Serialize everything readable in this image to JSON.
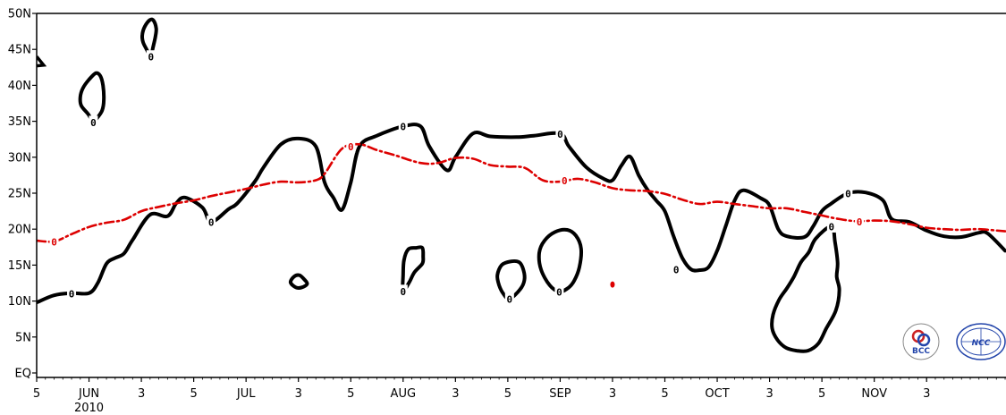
{
  "chart_data": {
    "type": "line",
    "title": "",
    "xlabel": "",
    "ylabel": "",
    "y_tick_labels": [
      "EQ",
      "5N",
      "10N",
      "15N",
      "20N",
      "25N",
      "30N",
      "35N",
      "40N",
      "45N",
      "50N"
    ],
    "ylim": [
      0,
      50
    ],
    "x_tick_labels": [
      {
        "label": "5",
        "day": 5
      },
      {
        "label": "JUN",
        "day": 11
      },
      {
        "label": "3",
        "day": 17
      },
      {
        "label": "5",
        "day": 23
      },
      {
        "label": "JUL",
        "day": 29
      },
      {
        "label": "3",
        "day": 35
      },
      {
        "label": "5",
        "day": 41
      },
      {
        "label": "AUG",
        "day": 47
      },
      {
        "label": "3",
        "day": 53
      },
      {
        "label": "5",
        "day": 59
      },
      {
        "label": "SEP",
        "day": 65
      },
      {
        "label": "3",
        "day": 71
      },
      {
        "label": "5",
        "day": 77
      },
      {
        "label": "OCT",
        "day": 83
      },
      {
        "label": "3",
        "day": 89
      },
      {
        "label": "5",
        "day": 95
      },
      {
        "label": "NOV",
        "day": 101
      },
      {
        "label": "3",
        "day": 107
      }
    ],
    "year_label": "2010",
    "grid": false,
    "series": [
      {
        "color": "#000000",
        "style": "solid",
        "contour_label": "0",
        "points": [
          [
            5,
            9.8
          ],
          [
            7,
            10.8
          ],
          [
            9,
            11.1
          ],
          [
            11,
            11.1
          ],
          [
            12,
            12.5
          ],
          [
            13,
            15.2
          ],
          [
            14,
            16.0
          ],
          [
            15,
            16.6
          ],
          [
            16,
            18.5
          ],
          [
            18,
            22.0
          ],
          [
            20,
            21.8
          ],
          [
            21,
            23.6
          ],
          [
            22,
            24.4
          ],
          [
            24,
            23.0
          ],
          [
            25,
            21.0
          ],
          [
            27,
            22.8
          ],
          [
            28,
            23.6
          ],
          [
            30,
            26.6
          ],
          [
            31,
            28.6
          ],
          [
            33,
            31.8
          ],
          [
            35,
            32.6
          ],
          [
            37,
            31.5
          ],
          [
            38,
            26.5
          ],
          [
            39,
            24.4
          ],
          [
            40,
            22.7
          ],
          [
            41,
            26.5
          ],
          [
            42,
            31.5
          ],
          [
            44,
            33.0
          ],
          [
            47,
            34.3
          ],
          [
            49,
            34.3
          ],
          [
            50,
            31.5
          ],
          [
            52,
            28.2
          ],
          [
            53,
            30.0
          ],
          [
            55,
            33.3
          ],
          [
            57,
            32.9
          ],
          [
            60,
            32.8
          ],
          [
            62,
            33.0
          ],
          [
            65,
            33.3
          ],
          [
            66,
            31.5
          ],
          [
            68,
            28.6
          ],
          [
            70,
            27.0
          ],
          [
            71,
            26.8
          ],
          [
            72,
            28.8
          ],
          [
            73,
            30.1
          ],
          [
            74,
            27.5
          ],
          [
            75,
            25.5
          ],
          [
            76,
            24.0
          ],
          [
            77,
            22.5
          ],
          [
            78,
            19.0
          ],
          [
            79,
            16.0
          ],
          [
            80,
            14.4
          ],
          [
            81,
            14.3
          ],
          [
            82,
            14.7
          ],
          [
            83,
            17.0
          ],
          [
            84,
            20.5
          ],
          [
            85,
            24.0
          ],
          [
            86,
            25.4
          ],
          [
            88,
            24.3
          ],
          [
            89,
            23.3
          ],
          [
            90,
            20.0
          ],
          [
            91,
            19.0
          ],
          [
            93,
            18.9
          ],
          [
            94,
            20.4
          ],
          [
            95,
            22.5
          ],
          [
            96,
            23.5
          ],
          [
            98,
            25.0
          ],
          [
            100,
            25.1
          ],
          [
            102,
            24.0
          ],
          [
            103,
            21.4
          ],
          [
            105,
            21.0
          ],
          [
            107,
            19.8
          ],
          [
            109,
            19.0
          ],
          [
            111,
            18.9
          ],
          [
            113,
            19.5
          ],
          [
            114,
            19.4
          ],
          [
            116,
            17.0
          ]
        ]
      },
      {
        "color": "#dd0000",
        "style": "dash-dot",
        "contour_label": "0",
        "points": [
          [
            5,
            18.4
          ],
          [
            7,
            18.3
          ],
          [
            9,
            19.3
          ],
          [
            11,
            20.3
          ],
          [
            13,
            20.9
          ],
          [
            15,
            21.3
          ],
          [
            17,
            22.5
          ],
          [
            19,
            23.1
          ],
          [
            21,
            23.6
          ],
          [
            23,
            24.0
          ],
          [
            25,
            24.6
          ],
          [
            27,
            25.1
          ],
          [
            29,
            25.6
          ],
          [
            31,
            26.2
          ],
          [
            33,
            26.6
          ],
          [
            35,
            26.5
          ],
          [
            37,
            26.8
          ],
          [
            38,
            27.7
          ],
          [
            40,
            31.2
          ],
          [
            42,
            31.8
          ],
          [
            44,
            31.0
          ],
          [
            46,
            30.3
          ],
          [
            49,
            29.2
          ],
          [
            51,
            29.2
          ],
          [
            53,
            29.9
          ],
          [
            55,
            29.8
          ],
          [
            57,
            28.9
          ],
          [
            59,
            28.7
          ],
          [
            61,
            28.5
          ],
          [
            63,
            26.8
          ],
          [
            65,
            26.6
          ],
          [
            67,
            27.0
          ],
          [
            69,
            26.5
          ],
          [
            71,
            25.7
          ],
          [
            73,
            25.4
          ],
          [
            75,
            25.3
          ],
          [
            77,
            24.9
          ],
          [
            79,
            24.1
          ],
          [
            81,
            23.5
          ],
          [
            83,
            23.8
          ],
          [
            85,
            23.5
          ],
          [
            87,
            23.2
          ],
          [
            89,
            22.9
          ],
          [
            91,
            22.9
          ],
          [
            93,
            22.4
          ],
          [
            95,
            21.9
          ],
          [
            97,
            21.4
          ],
          [
            99,
            21.1
          ],
          [
            101,
            21.2
          ],
          [
            103,
            21.1
          ],
          [
            105,
            20.7
          ],
          [
            107,
            20.2
          ],
          [
            109,
            20.0
          ],
          [
            111,
            19.9
          ],
          [
            113,
            20.0
          ],
          [
            116,
            19.7
          ]
        ]
      }
    ],
    "closed_contours": [
      {
        "color": "#000000",
        "points": [
          [
            11.5,
            34.9
          ],
          [
            10.9,
            36.0
          ],
          [
            10.1,
            37.2
          ],
          [
            10.0,
            38.4
          ],
          [
            10.3,
            39.6
          ],
          [
            11.0,
            40.8
          ],
          [
            11.8,
            41.7
          ],
          [
            12.3,
            41.3
          ],
          [
            12.6,
            40.0
          ],
          [
            12.7,
            38.0
          ],
          [
            12.5,
            36.5
          ],
          [
            11.9,
            35.4
          ]
        ],
        "label_at": [
          11.5,
          34.9
        ]
      },
      {
        "color": "#000000",
        "points": [
          [
            18.1,
            44.0
          ],
          [
            17.6,
            45.0
          ],
          [
            17.2,
            46.0
          ],
          [
            17.1,
            47.0
          ],
          [
            17.4,
            48.2
          ],
          [
            18.0,
            49.1
          ],
          [
            18.4,
            49.0
          ],
          [
            18.7,
            47.9
          ],
          [
            18.6,
            46.7
          ],
          [
            18.3,
            45.1
          ]
        ],
        "label_at": [
          18.1,
          44.0
        ]
      },
      {
        "color": "#000000",
        "points": [
          [
            34.1,
            12.6
          ],
          [
            34.5,
            13.4
          ],
          [
            35.1,
            13.6
          ],
          [
            35.6,
            13.1
          ],
          [
            36.0,
            12.4
          ],
          [
            35.4,
            11.9
          ],
          [
            34.7,
            11.9
          ]
        ],
        "label_at": null
      },
      {
        "color": "#000000",
        "points": [
          [
            47.0,
            11.4
          ],
          [
            47.0,
            13.6
          ],
          [
            47.1,
            15.7
          ],
          [
            47.6,
            17.2
          ],
          [
            48.5,
            17.4
          ],
          [
            49.2,
            17.4
          ],
          [
            49.3,
            16.2
          ],
          [
            49.2,
            15.2
          ],
          [
            48.3,
            14.0
          ],
          [
            47.7,
            12.6
          ]
        ],
        "label_at": [
          47.0,
          11.4
        ]
      },
      {
        "color": "#000000",
        "points": [
          [
            59.2,
            10.3
          ],
          [
            58.5,
            11.0
          ],
          [
            58.0,
            12.2
          ],
          [
            57.8,
            13.6
          ],
          [
            58.3,
            15.0
          ],
          [
            59.3,
            15.5
          ],
          [
            60.3,
            15.4
          ],
          [
            60.8,
            14.3
          ],
          [
            60.9,
            12.9
          ],
          [
            60.4,
            11.6
          ]
        ],
        "label_at": [
          59.2,
          10.3
        ]
      },
      {
        "color": "#000000",
        "points": [
          [
            64.9,
            11.3
          ],
          [
            63.8,
            12.2
          ],
          [
            62.8,
            14.4
          ],
          [
            62.6,
            16.7
          ],
          [
            63.2,
            18.4
          ],
          [
            64.4,
            19.6
          ],
          [
            65.8,
            19.9
          ],
          [
            66.8,
            19.1
          ],
          [
            67.4,
            17.3
          ],
          [
            67.2,
            14.7
          ],
          [
            66.6,
            12.8
          ],
          [
            65.9,
            11.8
          ]
        ],
        "label_at": [
          64.9,
          11.3
        ]
      },
      {
        "color": "#000000",
        "points": [
          [
            96.1,
            20.4
          ],
          [
            94.3,
            18.7
          ],
          [
            93.5,
            16.8
          ],
          [
            92.6,
            15.4
          ],
          [
            91.8,
            13.4
          ],
          [
            91.0,
            11.8
          ],
          [
            90.1,
            10.2
          ],
          [
            89.4,
            8.1
          ],
          [
            89.3,
            6.2
          ],
          [
            89.9,
            4.6
          ],
          [
            90.9,
            3.5
          ],
          [
            92.1,
            3.1
          ],
          [
            93.4,
            3.1
          ],
          [
            94.6,
            4.1
          ],
          [
            95.5,
            6.2
          ],
          [
            96.6,
            8.7
          ],
          [
            97.0,
            11.5
          ],
          [
            96.7,
            13.4
          ],
          [
            96.8,
            15.3
          ],
          [
            96.5,
            18.2
          ]
        ],
        "label_at": [
          96.1,
          20.4
        ]
      }
    ],
    "red_dot": [
      71.0,
      12.3
    ],
    "black_labels": [
      [
        9.0,
        11.1
      ],
      [
        25.0,
        21.0
      ],
      [
        47.0,
        34.3
      ],
      [
        65.0,
        33.3
      ],
      [
        78.3,
        14.4
      ],
      [
        98.0,
        25.0
      ]
    ],
    "red_labels": [
      [
        7.0,
        18.3
      ],
      [
        41.0,
        31.5
      ],
      [
        65.5,
        26.8
      ],
      [
        99.3,
        21.1
      ]
    ]
  },
  "logos": {
    "left_text": "BCC",
    "right_text": "NCC"
  }
}
